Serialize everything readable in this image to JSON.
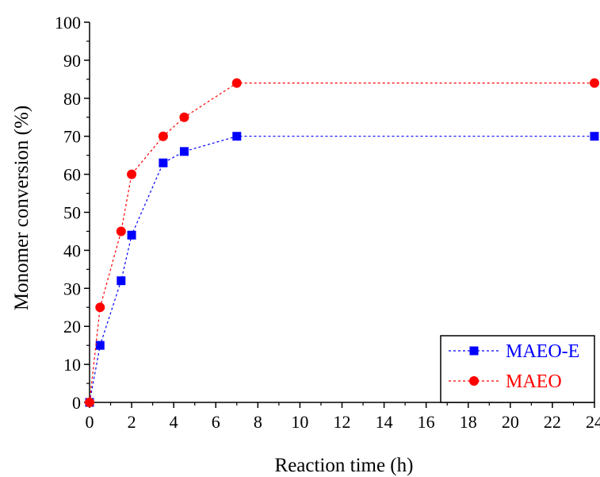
{
  "chart_data": {
    "type": "line",
    "title": "",
    "xlabel": "Reaction time (h)",
    "ylabel": "Monomer conversion (%)",
    "xlim": [
      0,
      24
    ],
    "ylim": [
      0,
      100
    ],
    "x_ticks": [
      0,
      2,
      4,
      6,
      8,
      10,
      12,
      14,
      16,
      18,
      20,
      22,
      24
    ],
    "y_ticks": [
      0,
      10,
      20,
      30,
      40,
      50,
      60,
      70,
      80,
      90,
      100
    ],
    "grid": false,
    "legend_position": "bottom-right",
    "series": [
      {
        "name": "MAEO-E",
        "color": "#0000ff",
        "marker": "square",
        "line_style": "dotted",
        "x": [
          0,
          0.5,
          1.5,
          2,
          3.5,
          4.5,
          7,
          24
        ],
        "values": [
          0,
          15,
          32,
          44,
          63,
          66,
          70,
          70
        ]
      },
      {
        "name": "MAEO",
        "color": "#ff0000",
        "marker": "circle",
        "line_style": "dotted",
        "x": [
          0,
          0.5,
          1.5,
          2,
          3.5,
          4.5,
          7,
          24
        ],
        "values": [
          0,
          25,
          45,
          60,
          70,
          75,
          84,
          84
        ]
      }
    ]
  }
}
